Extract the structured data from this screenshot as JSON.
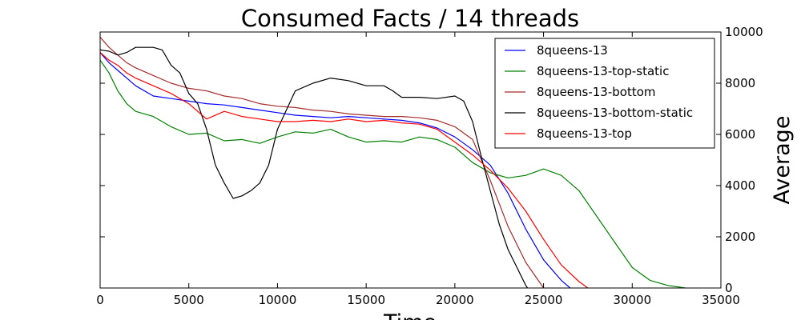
{
  "chart_data": {
    "type": "line",
    "title": "Consumed Facts / 14 threads",
    "xlabel": "Time",
    "ylabel": "Average",
    "xlim": [
      0,
      35000
    ],
    "ylim": [
      0,
      10000
    ],
    "y_axis_side": "right",
    "grid": false,
    "legend_position": "top-right",
    "x_ticks": [
      "0",
      "5000",
      "10000",
      "15000",
      "20000",
      "25000",
      "30000",
      "35000"
    ],
    "y_ticks": [
      "0",
      "2000",
      "4000",
      "6000",
      "8000",
      "10000"
    ],
    "series": [
      {
        "name": "8queens-13",
        "color": "#0000ff",
        "x": [
          0,
          500,
          1000,
          1500,
          2000,
          3000,
          4000,
          5000,
          6000,
          7000,
          8000,
          9000,
          10000,
          11000,
          12000,
          13000,
          14000,
          15000,
          16000,
          17000,
          18000,
          19000,
          20000,
          21000,
          22000,
          23000,
          24000,
          25000,
          26000,
          26500
        ],
        "y": [
          9200,
          8800,
          8500,
          8200,
          7900,
          7500,
          7400,
          7300,
          7200,
          7150,
          7050,
          6950,
          6850,
          6750,
          6700,
          6650,
          6700,
          6650,
          6600,
          6550,
          6450,
          6250,
          5900,
          5400,
          4800,
          3700,
          2300,
          1100,
          300,
          0
        ]
      },
      {
        "name": "8queens-13-top-static",
        "color": "#008000",
        "x": [
          0,
          500,
          1000,
          1500,
          2000,
          3000,
          4000,
          5000,
          6000,
          7000,
          8000,
          9000,
          10000,
          11000,
          12000,
          13000,
          14000,
          15000,
          16000,
          17000,
          18000,
          19000,
          20000,
          21000,
          22000,
          23000,
          24000,
          25000,
          26000,
          27000,
          28000,
          29000,
          30000,
          31000,
          32000,
          32500,
          33000
        ],
        "y": [
          8900,
          8400,
          7700,
          7200,
          6900,
          6700,
          6300,
          6000,
          6050,
          5750,
          5800,
          5650,
          5900,
          6100,
          6050,
          6200,
          5900,
          5700,
          5750,
          5700,
          5900,
          5800,
          5500,
          4900,
          4500,
          4300,
          4400,
          4650,
          4400,
          3800,
          2800,
          1800,
          800,
          300,
          100,
          50,
          0
        ]
      },
      {
        "name": "8queens-13-bottom",
        "color": "#a52a2a",
        "x": [
          0,
          500,
          1000,
          1500,
          2000,
          3000,
          4000,
          5000,
          6000,
          7000,
          8000,
          9000,
          10000,
          11000,
          12000,
          13000,
          14000,
          15000,
          16000,
          17000,
          18000,
          19000,
          20000,
          21000,
          22000,
          23000,
          24000,
          25000
        ],
        "y": [
          9800,
          9400,
          9100,
          8800,
          8600,
          8300,
          8000,
          7800,
          7700,
          7500,
          7400,
          7200,
          7100,
          7050,
          6950,
          6900,
          6800,
          6750,
          6700,
          6700,
          6650,
          6550,
          6300,
          5800,
          4200,
          2400,
          1000,
          0
        ]
      },
      {
        "name": "8queens-13-bottom-static",
        "color": "#000000",
        "x": [
          0,
          500,
          1000,
          1500,
          2000,
          3000,
          3500,
          4000,
          4500,
          5000,
          5500,
          6000,
          6500,
          7000,
          7500,
          8000,
          8500,
          9000,
          9500,
          10000,
          11000,
          12000,
          13000,
          14000,
          15000,
          16000,
          16500,
          17000,
          18000,
          19000,
          20000,
          20500,
          21000,
          21500,
          22000,
          22500,
          23000,
          23500,
          24000,
          24100
        ],
        "y": [
          9300,
          9250,
          9100,
          9200,
          9400,
          9400,
          9300,
          8700,
          8400,
          7600,
          7200,
          6200,
          4800,
          4100,
          3500,
          3600,
          3800,
          4100,
          4800,
          6200,
          7700,
          8000,
          8200,
          8100,
          7900,
          7900,
          7700,
          7450,
          7450,
          7400,
          7500,
          7300,
          6500,
          5100,
          3800,
          2500,
          1500,
          800,
          100,
          0
        ]
      },
      {
        "name": "8queens-13-top",
        "color": "#ff0000",
        "x": [
          0,
          500,
          1000,
          1500,
          2000,
          3000,
          4000,
          5000,
          6000,
          7000,
          8000,
          9000,
          10000,
          11000,
          12000,
          13000,
          14000,
          15000,
          16000,
          17000,
          18000,
          19000,
          20000,
          21000,
          22000,
          23000,
          24000,
          25000,
          26000,
          27000,
          27500
        ],
        "y": [
          9200,
          8900,
          8700,
          8400,
          8200,
          7900,
          7600,
          7200,
          6600,
          6900,
          6700,
          6600,
          6500,
          6500,
          6550,
          6500,
          6600,
          6500,
          6550,
          6450,
          6400,
          6200,
          5700,
          5200,
          4600,
          3900,
          3000,
          1900,
          900,
          250,
          0
        ]
      }
    ]
  }
}
